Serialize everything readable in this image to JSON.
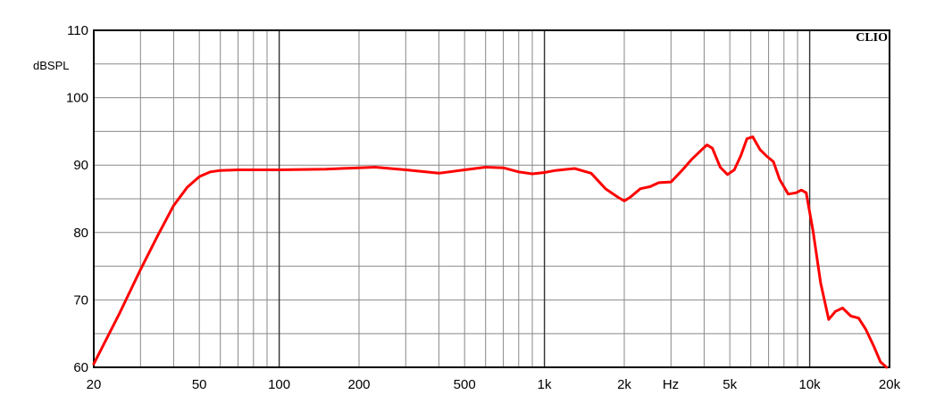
{
  "chart_data": {
    "type": "line",
    "brand": "CLIO",
    "ylabel": "dBSPL",
    "xlabel": "Hz",
    "xscale": "log",
    "xlim": [
      20,
      20000
    ],
    "ylim": [
      60,
      110
    ],
    "grid": true,
    "x_ticks": [
      {
        "value": 20,
        "label": "20"
      },
      {
        "value": 50,
        "label": "50"
      },
      {
        "value": 100,
        "label": "100"
      },
      {
        "value": 200,
        "label": "200"
      },
      {
        "value": 500,
        "label": "500"
      },
      {
        "value": 1000,
        "label": "1k"
      },
      {
        "value": 2000,
        "label": "2k"
      },
      {
        "value": 5000,
        "label": "5k"
      },
      {
        "value": 10000,
        "label": "10k"
      },
      {
        "value": 20000,
        "label": "20k"
      }
    ],
    "y_ticks": [
      {
        "value": 60,
        "label": "60"
      },
      {
        "value": 70,
        "label": "70"
      },
      {
        "value": 80,
        "label": "80"
      },
      {
        "value": 90,
        "label": "90"
      },
      {
        "value": 100,
        "label": "100"
      },
      {
        "value": 110,
        "label": "110"
      }
    ],
    "series_color": "#ff0000",
    "series": [
      {
        "x": [
          20,
          25,
          30,
          35,
          40,
          45,
          50,
          55,
          60,
          70,
          80,
          100,
          150,
          200,
          230,
          300,
          400,
          500,
          600,
          700,
          800,
          900,
          1000,
          1100,
          1300,
          1500,
          1700,
          1900,
          2000,
          2100,
          2300,
          2500,
          2700,
          3000,
          3300,
          3600,
          3900,
          4100,
          4300,
          4600,
          4900,
          5200,
          5500,
          5800,
          6100,
          6500,
          6900,
          7300,
          7700,
          8300,
          8900,
          9300,
          9700,
          10300,
          11000,
          11800,
          12500,
          13300,
          14300,
          15300,
          16300,
          17500,
          18500,
          19500
        ],
        "y": [
          60.5,
          68.0,
          74.5,
          79.7,
          84.0,
          86.7,
          88.3,
          89.0,
          89.2,
          89.3,
          89.3,
          89.3,
          89.4,
          89.6,
          89.7,
          89.3,
          88.8,
          89.3,
          89.7,
          89.6,
          89.0,
          88.7,
          88.9,
          89.2,
          89.5,
          88.8,
          86.5,
          85.2,
          84.7,
          85.2,
          86.5,
          86.8,
          87.4,
          87.5,
          89.2,
          90.9,
          92.2,
          93.0,
          92.5,
          89.7,
          88.6,
          89.3,
          91.4,
          93.9,
          94.2,
          92.3,
          91.3,
          90.5,
          87.9,
          85.7,
          85.9,
          86.3,
          85.9,
          80.2,
          72.5,
          67.1,
          68.3,
          68.8,
          67.6,
          67.3,
          65.6,
          63.0,
          60.8,
          60.0
        ]
      }
    ]
  }
}
